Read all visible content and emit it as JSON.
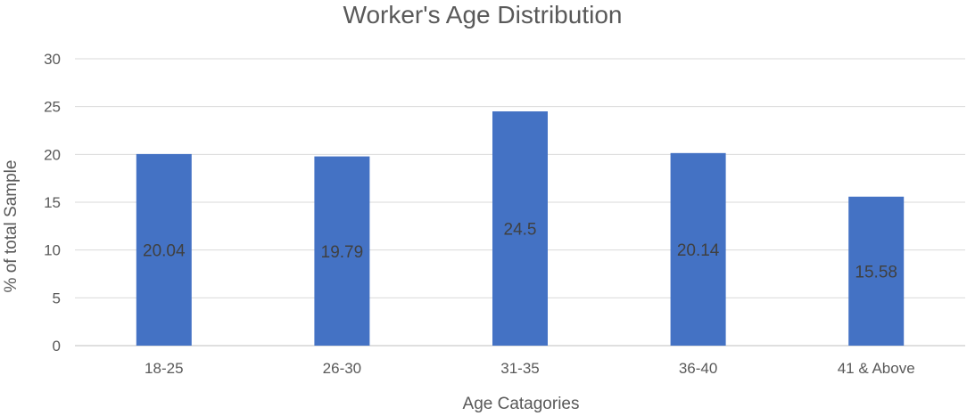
{
  "chart_data": {
    "type": "bar",
    "title": "Worker's Age Distribution",
    "xlabel": "Age Catagories",
    "ylabel": "% of total Sample",
    "categories": [
      "18-25",
      "26-30",
      "31-35",
      "36-40",
      "41 & Above"
    ],
    "values": [
      20.04,
      19.79,
      24.5,
      20.14,
      15.58
    ],
    "data_labels": [
      "20.04",
      "19.79",
      "24.5",
      "20.14",
      "15.58"
    ],
    "ylim": [
      0,
      30
    ],
    "yticks": [
      0,
      5,
      10,
      15,
      20,
      25,
      30
    ],
    "grid": true,
    "legend": "none",
    "bar_color": "#4472c4"
  }
}
